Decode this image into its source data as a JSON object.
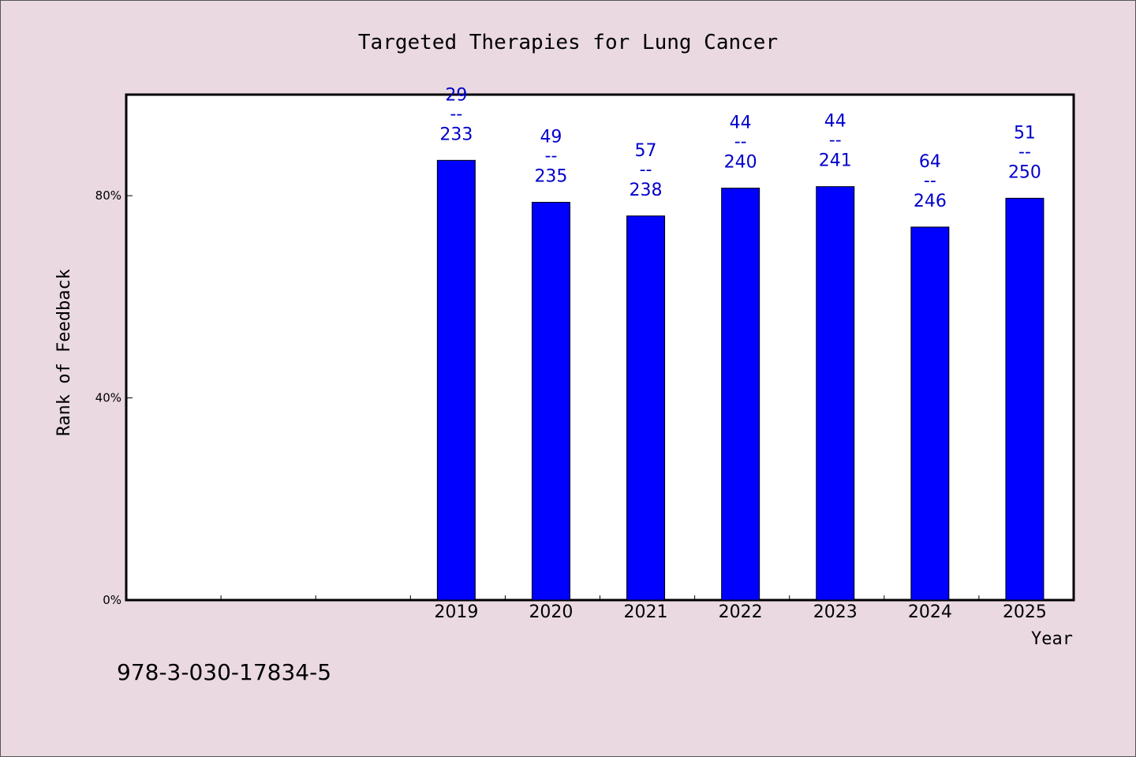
{
  "chart_data": {
    "type": "bar",
    "title": "Targeted Therapies for Lung Cancer",
    "xlabel": "Year",
    "ylabel": "Rank of Feedback",
    "categories": [
      "",
      "",
      "",
      "2019",
      "2020",
      "2021",
      "2022",
      "2023",
      "2024",
      "2025"
    ],
    "values": [
      null,
      null,
      null,
      87,
      78.7,
      76,
      81.5,
      81.8,
      73.8,
      79.5
    ],
    "top_labels": [
      null,
      null,
      null,
      "29",
      "49",
      "57",
      "44",
      "44",
      "64",
      "51"
    ],
    "bottom_labels": [
      null,
      null,
      null,
      "233",
      "235",
      "238",
      "240",
      "241",
      "246",
      "250"
    ],
    "separator_label": "--",
    "ylim": [
      0,
      100
    ],
    "yticks": [
      0,
      40,
      80
    ],
    "ytick_labels": [
      "0%",
      "40%",
      "80%"
    ],
    "bar_color": "#0000ff",
    "label_color": "#0000cc",
    "grid": false,
    "legend": "none"
  },
  "footer_note": "978-3-030-17834-5"
}
